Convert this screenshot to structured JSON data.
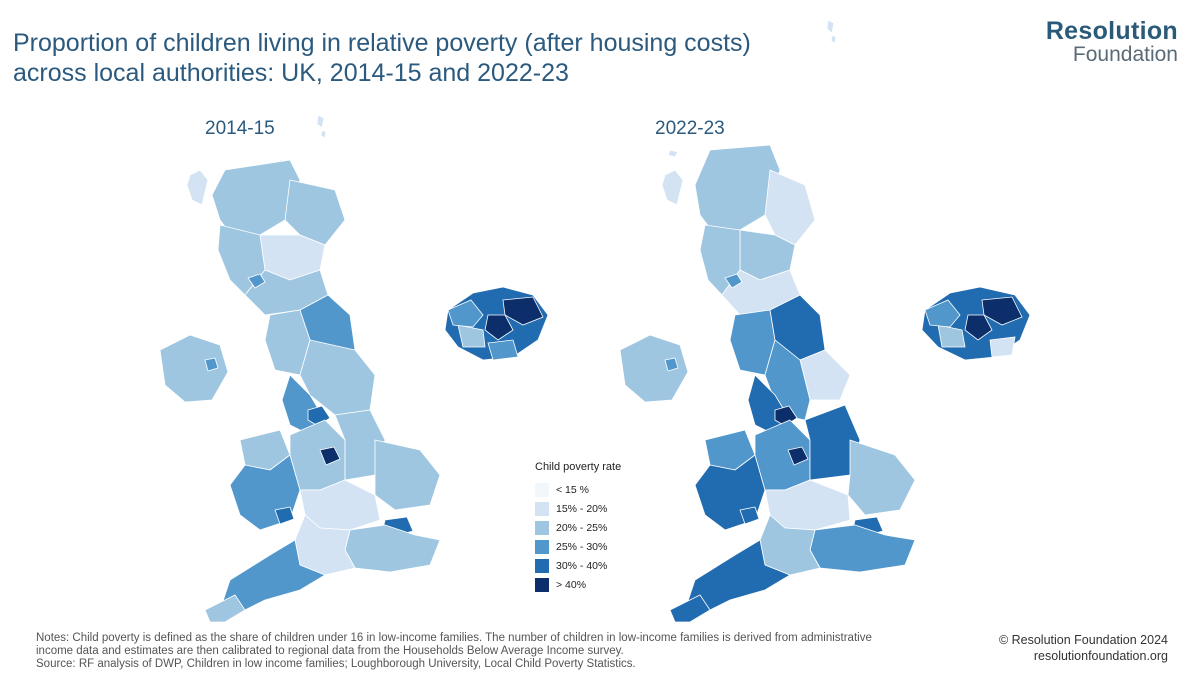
{
  "title": {
    "line1": "Proportion of children living in relative poverty (after housing costs)",
    "line2": "across local authorities: UK, 2014-15 and 2022-23"
  },
  "logo": {
    "line1": "Resolution",
    "line2": "Foundation"
  },
  "maps": [
    {
      "label": "2014-15"
    },
    {
      "label": "2022-23"
    }
  ],
  "legend": {
    "title": "Child poverty rate",
    "items": [
      {
        "label": "< 15 %",
        "color": "#f2f7fc"
      },
      {
        "label": "15% - 20%",
        "color": "#d3e3f3"
      },
      {
        "label": "20% - 25%",
        "color": "#9ec6e1"
      },
      {
        "label": "25% - 30%",
        "color": "#5197cc"
      },
      {
        "label": "30% - 40%",
        "color": "#216bb0"
      },
      {
        "label": "> 40%",
        "color": "#0c2f6b"
      }
    ]
  },
  "notes": {
    "line1": "Notes: Child poverty is defined as the share of children under 16 in low-income families. The number of children in low-income families is derived from administrative",
    "line2": "income data and estimates are then calibrated to regional data from the Households Below Average Income survey.",
    "line3": " Source: RF analysis of DWP, Children in low income families; Loughborough University, Local Child Poverty Statistics."
  },
  "credit": {
    "line1": "© Resolution Foundation 2024",
    "line2": "resolutionfoundation.org"
  }
}
